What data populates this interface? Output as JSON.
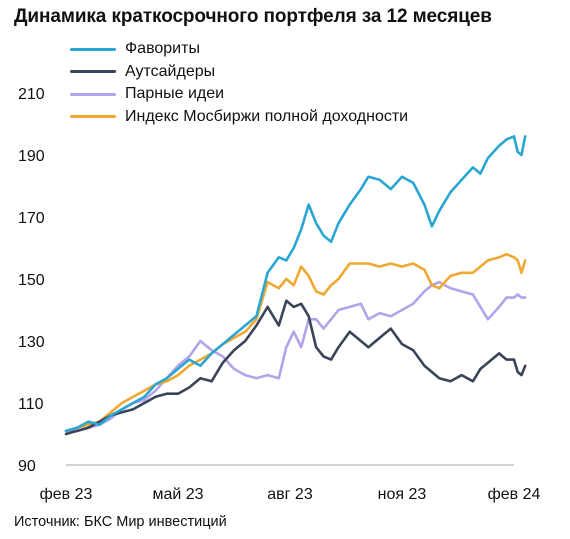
{
  "chart_data": {
    "type": "line",
    "title": "Динамика краткосрочного портфеля за 12 месяцев",
    "source": "Источник: БКС Мир инвестиций",
    "xlabel": "",
    "ylabel": "",
    "x_ticks": [
      "фев 23",
      "май 23",
      "авг 23",
      "ноя 23",
      "фев 24"
    ],
    "y_ticks": [
      90,
      110,
      130,
      150,
      170,
      190,
      210
    ],
    "ylim": [
      90,
      210
    ],
    "x_range": [
      0,
      12
    ],
    "grid": false,
    "legend_position": "top-left",
    "series": [
      {
        "name": "Фавориты",
        "color": "#2aa6d3",
        "points": [
          [
            0,
            101
          ],
          [
            0.3,
            102
          ],
          [
            0.6,
            104
          ],
          [
            0.9,
            103
          ],
          [
            1.2,
            106
          ],
          [
            1.5,
            108
          ],
          [
            1.8,
            110
          ],
          [
            2.1,
            112
          ],
          [
            2.4,
            116
          ],
          [
            2.7,
            118
          ],
          [
            3,
            121
          ],
          [
            3.3,
            124
          ],
          [
            3.6,
            122
          ],
          [
            3.9,
            126
          ],
          [
            4.2,
            129
          ],
          [
            4.5,
            132
          ],
          [
            4.8,
            135
          ],
          [
            5.1,
            138
          ],
          [
            5.4,
            152
          ],
          [
            5.7,
            157
          ],
          [
            5.9,
            156
          ],
          [
            6.1,
            160
          ],
          [
            6.3,
            166
          ],
          [
            6.5,
            174
          ],
          [
            6.7,
            168
          ],
          [
            6.9,
            164
          ],
          [
            7.1,
            162
          ],
          [
            7.3,
            168
          ],
          [
            7.6,
            174
          ],
          [
            7.9,
            179
          ],
          [
            8.1,
            183
          ],
          [
            8.4,
            182
          ],
          [
            8.7,
            179
          ],
          [
            9,
            183
          ],
          [
            9.3,
            181
          ],
          [
            9.6,
            174
          ],
          [
            9.8,
            167
          ],
          [
            10,
            172
          ],
          [
            10.3,
            178
          ],
          [
            10.6,
            182
          ],
          [
            10.9,
            186
          ],
          [
            11.1,
            184
          ],
          [
            11.3,
            189
          ],
          [
            11.6,
            193
          ],
          [
            11.8,
            195
          ],
          [
            12,
            196
          ],
          [
            12.1,
            191
          ],
          [
            12.2,
            190
          ],
          [
            12.3,
            196
          ]
        ]
      },
      {
        "name": "Аутсайдеры",
        "color": "#3a4458",
        "points": [
          [
            0,
            100
          ],
          [
            0.3,
            101
          ],
          [
            0.6,
            102
          ],
          [
            0.9,
            104
          ],
          [
            1.2,
            106
          ],
          [
            1.5,
            107
          ],
          [
            1.8,
            108
          ],
          [
            2.1,
            110
          ],
          [
            2.4,
            112
          ],
          [
            2.7,
            113
          ],
          [
            3,
            113
          ],
          [
            3.3,
            115
          ],
          [
            3.6,
            118
          ],
          [
            3.9,
            117
          ],
          [
            4.2,
            123
          ],
          [
            4.5,
            127
          ],
          [
            4.8,
            130
          ],
          [
            5.1,
            135
          ],
          [
            5.4,
            141
          ],
          [
            5.7,
            135
          ],
          [
            5.9,
            143
          ],
          [
            6.1,
            141
          ],
          [
            6.3,
            142
          ],
          [
            6.5,
            138
          ],
          [
            6.7,
            128
          ],
          [
            6.9,
            125
          ],
          [
            7.1,
            124
          ],
          [
            7.3,
            128
          ],
          [
            7.6,
            133
          ],
          [
            7.9,
            130
          ],
          [
            8.1,
            128
          ],
          [
            8.4,
            131
          ],
          [
            8.7,
            134
          ],
          [
            9,
            129
          ],
          [
            9.3,
            127
          ],
          [
            9.6,
            122
          ],
          [
            9.8,
            120
          ],
          [
            10,
            118
          ],
          [
            10.3,
            117
          ],
          [
            10.6,
            119
          ],
          [
            10.9,
            117
          ],
          [
            11.1,
            121
          ],
          [
            11.3,
            123
          ],
          [
            11.6,
            126
          ],
          [
            11.8,
            124
          ],
          [
            12,
            124
          ],
          [
            12.1,
            120
          ],
          [
            12.2,
            119
          ],
          [
            12.3,
            122
          ]
        ]
      },
      {
        "name": "Парные идеи",
        "color": "#b3a3ea",
        "points": [
          [
            0,
            101
          ],
          [
            0.3,
            101
          ],
          [
            0.6,
            102
          ],
          [
            0.9,
            103
          ],
          [
            1.2,
            105
          ],
          [
            1.5,
            108
          ],
          [
            1.8,
            110
          ],
          [
            2.1,
            111
          ],
          [
            2.4,
            114
          ],
          [
            2.7,
            118
          ],
          [
            3,
            122
          ],
          [
            3.3,
            125
          ],
          [
            3.6,
            130
          ],
          [
            3.9,
            127
          ],
          [
            4.2,
            125
          ],
          [
            4.5,
            121
          ],
          [
            4.8,
            119
          ],
          [
            5.1,
            118
          ],
          [
            5.4,
            119
          ],
          [
            5.7,
            118
          ],
          [
            5.9,
            128
          ],
          [
            6.1,
            133
          ],
          [
            6.3,
            128
          ],
          [
            6.5,
            137
          ],
          [
            6.7,
            137
          ],
          [
            6.9,
            134
          ],
          [
            7.1,
            137
          ],
          [
            7.3,
            140
          ],
          [
            7.6,
            141
          ],
          [
            7.9,
            142
          ],
          [
            8.1,
            137
          ],
          [
            8.4,
            139
          ],
          [
            8.7,
            138
          ],
          [
            9,
            140
          ],
          [
            9.3,
            142
          ],
          [
            9.6,
            146
          ],
          [
            9.8,
            148
          ],
          [
            10,
            149
          ],
          [
            10.3,
            147
          ],
          [
            10.6,
            146
          ],
          [
            10.9,
            145
          ],
          [
            11.1,
            141
          ],
          [
            11.3,
            137
          ],
          [
            11.6,
            141
          ],
          [
            11.8,
            144
          ],
          [
            12,
            144
          ],
          [
            12.1,
            145
          ],
          [
            12.2,
            144
          ],
          [
            12.3,
            144
          ]
        ]
      },
      {
        "name": "Индекс Мосбиржи полной доходности",
        "color": "#f0a830",
        "points": [
          [
            0,
            101
          ],
          [
            0.3,
            102
          ],
          [
            0.6,
            103
          ],
          [
            0.9,
            104
          ],
          [
            1.2,
            107
          ],
          [
            1.5,
            110
          ],
          [
            1.8,
            112
          ],
          [
            2.1,
            114
          ],
          [
            2.4,
            116
          ],
          [
            2.7,
            117
          ],
          [
            3,
            119
          ],
          [
            3.3,
            122
          ],
          [
            3.6,
            124
          ],
          [
            3.9,
            126
          ],
          [
            4.2,
            129
          ],
          [
            4.5,
            131
          ],
          [
            4.8,
            133
          ],
          [
            5.1,
            137
          ],
          [
            5.4,
            149
          ],
          [
            5.7,
            147
          ],
          [
            5.9,
            150
          ],
          [
            6.1,
            148
          ],
          [
            6.3,
            154
          ],
          [
            6.5,
            151
          ],
          [
            6.7,
            146
          ],
          [
            6.9,
            145
          ],
          [
            7.1,
            148
          ],
          [
            7.3,
            150
          ],
          [
            7.6,
            155
          ],
          [
            7.9,
            155
          ],
          [
            8.1,
            155
          ],
          [
            8.4,
            154
          ],
          [
            8.7,
            155
          ],
          [
            9,
            154
          ],
          [
            9.3,
            155
          ],
          [
            9.6,
            153
          ],
          [
            9.8,
            148
          ],
          [
            10,
            147
          ],
          [
            10.3,
            151
          ],
          [
            10.6,
            152
          ],
          [
            10.9,
            152
          ],
          [
            11.1,
            154
          ],
          [
            11.3,
            156
          ],
          [
            11.6,
            157
          ],
          [
            11.8,
            158
          ],
          [
            12,
            157
          ],
          [
            12.1,
            156
          ],
          [
            12.2,
            152
          ],
          [
            12.3,
            156
          ]
        ]
      }
    ]
  }
}
